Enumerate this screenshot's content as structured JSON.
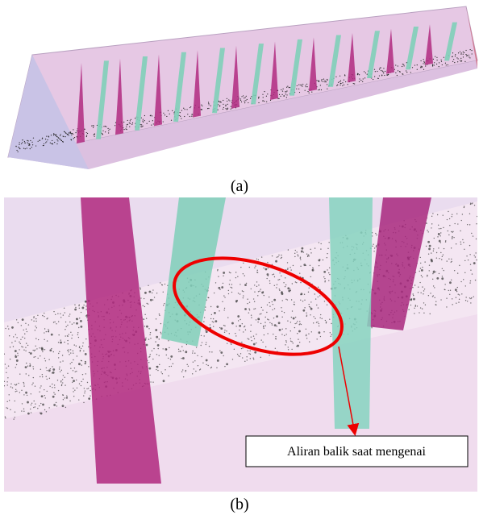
{
  "panels": [
    {
      "caption": "(a)"
    },
    {
      "caption": "(b)",
      "annotation": "Aliran balik saat mengenai"
    }
  ]
}
